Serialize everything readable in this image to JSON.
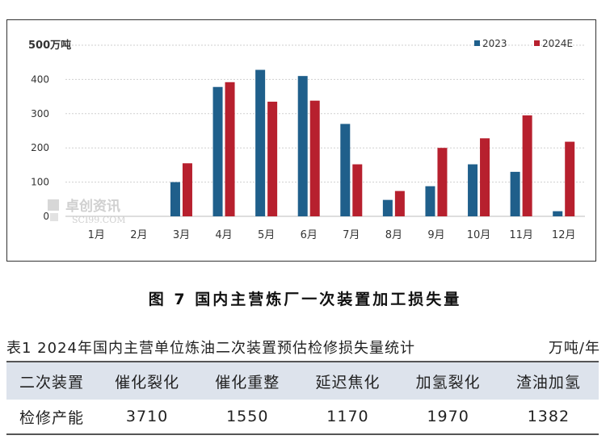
{
  "chart_data": {
    "type": "bar",
    "ylabel": "500万吨",
    "categories": [
      "1月",
      "2月",
      "3月",
      "4月",
      "5月",
      "6月",
      "7月",
      "8月",
      "9月",
      "10月",
      "11月",
      "12月"
    ],
    "ylim": [
      0,
      500
    ],
    "yticks": [
      "0",
      "100",
      "200",
      "300",
      "400"
    ],
    "grid": true,
    "legend_position": "top-right",
    "series": [
      {
        "name": "2023",
        "color": "#1f5f8b",
        "values": [
          0,
          0,
          100,
          378,
          428,
          410,
          270,
          48,
          88,
          152,
          130,
          15
        ]
      },
      {
        "name": "2024E",
        "color": "#b7202e",
        "values": [
          0,
          0,
          155,
          392,
          335,
          338,
          152,
          74,
          200,
          228,
          295,
          218
        ]
      }
    ]
  },
  "watermark": {
    "text": "卓创资讯",
    "subtext": "SCI99.COM"
  },
  "figure_caption": "图 7  国内主营炼厂一次装置加工损失量",
  "table": {
    "caption": "表1  2024年国内主营单位炼油二次装置预估检修损失量统计",
    "unit": "万吨/年",
    "headers": [
      "二次装置",
      "催化裂化",
      "催化重整",
      "延迟焦化",
      "加氢裂化",
      "渣油加氢"
    ],
    "rows": [
      [
        "检修产能",
        "3710",
        "1550",
        "1170",
        "1970",
        "1382"
      ]
    ]
  }
}
